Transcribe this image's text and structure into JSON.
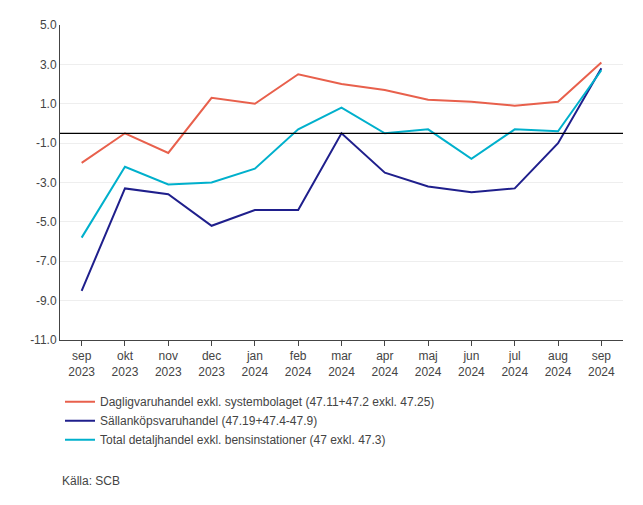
{
  "chart_data": {
    "type": "line",
    "categories": [
      "sep\n2023",
      "okt\n2023",
      "nov\n2023",
      "dec\n2023",
      "jan\n2024",
      "feb\n2024",
      "mar\n2024",
      "apr\n2024",
      "maj\n2024",
      "jun\n2024",
      "jul\n2024",
      "aug\n2024",
      "sep\n2024"
    ],
    "series": [
      {
        "name": "Dagligvaruhandel exkl. systembolaget (47.11+47.2 exkl. 47.25)",
        "color": "#E8604C",
        "values": [
          -2.0,
          -0.5,
          -1.5,
          1.3,
          1.0,
          2.5,
          2.0,
          1.7,
          1.2,
          1.1,
          0.9,
          1.1,
          3.1
        ]
      },
      {
        "name": "Sällanköpsvaruhandel (47.19+47.4-47.9)",
        "color": "#1F1F8C",
        "values": [
          -8.5,
          -3.3,
          -3.6,
          -5.2,
          -4.4,
          -4.4,
          -0.5,
          -2.5,
          -3.2,
          -3.5,
          -3.3,
          -1.0,
          2.8
        ]
      },
      {
        "name": "Total detaljhandel exkl. bensinstationer (47 exkl. 47.3)",
        "color": "#00B0CC",
        "values": [
          -5.8,
          -2.2,
          -3.1,
          -3.0,
          -2.3,
          -0.3,
          0.8,
          -0.5,
          -0.3,
          -1.8,
          -0.3,
          -0.4,
          2.7
        ]
      }
    ],
    "hline": {
      "y": -0.5,
      "color": "#000000"
    },
    "ylim": [
      -11.0,
      5.0
    ],
    "yticks": [
      {
        "value": -11.0,
        "label": "-11.0"
      },
      {
        "value": -9.0,
        "label": "-9.0"
      },
      {
        "value": -7.0,
        "label": "-7.0"
      },
      {
        "value": -5.0,
        "label": "-5.0"
      },
      {
        "value": -3.0,
        "label": "-3.0"
      },
      {
        "value": -1.0,
        "label": "-1.0"
      },
      {
        "value": 1.0,
        "label": "1.0"
      },
      {
        "value": 3.0,
        "label": "3.0"
      },
      {
        "value": 5.0,
        "label": "5.0"
      }
    ],
    "grid": "y",
    "legend": "below",
    "annotations": [
      "Källa: SCB"
    ]
  }
}
